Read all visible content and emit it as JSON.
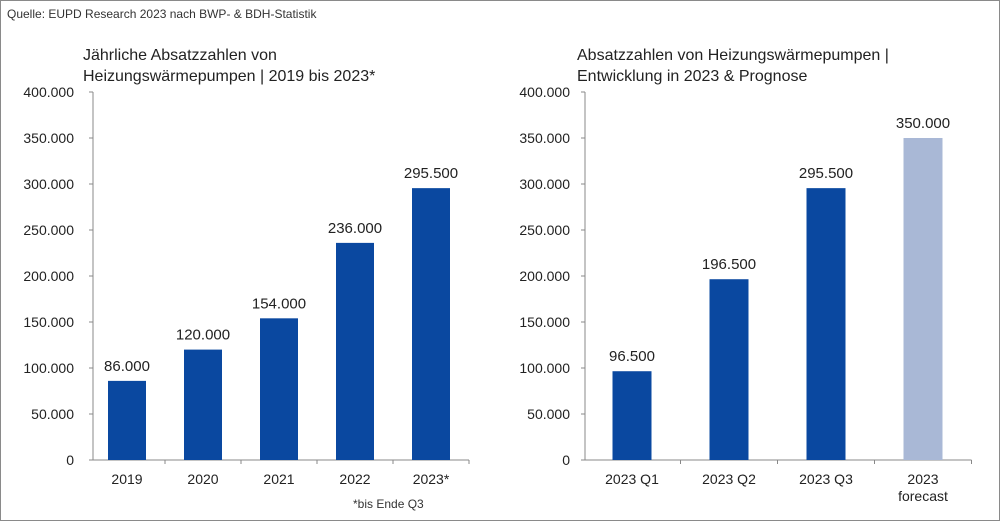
{
  "source": "Quelle: EUPD Research 2023 nach BWP- & BDH-Statistik",
  "footnote": "*bis Ende Q3",
  "chart_data": [
    {
      "type": "bar",
      "title": "Jährliche Absatzzahlen von\nHeizungswärmepumpen | 2019 bis 2023*",
      "categories": [
        "2019",
        "2020",
        "2021",
        "2022",
        "2023*"
      ],
      "values": [
        86000,
        120000,
        154000,
        236000,
        295500
      ],
      "data_labels": [
        "86.000",
        "120.000",
        "154.000",
        "236.000",
        "295.500"
      ],
      "yticks": [
        "0",
        "50.000",
        "100.000",
        "150.000",
        "200.000",
        "250.000",
        "300.000",
        "350.000",
        "400.000"
      ],
      "ylim": [
        0,
        400000
      ],
      "colors": [
        "#0a48a0",
        "#0a48a0",
        "#0a48a0",
        "#0a48a0",
        "#0a48a0"
      ],
      "grid": false,
      "legend": "none"
    },
    {
      "type": "bar",
      "title": "Absatzzahlen von Heizungswärmepumpen |\nEntwicklung in 2023 & Prognose",
      "categories": [
        "2023 Q1",
        "2023 Q2",
        "2023 Q3",
        "2023\nforecast"
      ],
      "values": [
        96500,
        196500,
        295500,
        350000
      ],
      "data_labels": [
        "96.500",
        "196.500",
        "295.500",
        "350.000"
      ],
      "yticks": [
        "0",
        "50.000",
        "100.000",
        "150.000",
        "200.000",
        "250.000",
        "300.000",
        "350.000",
        "400.000"
      ],
      "ylim": [
        0,
        400000
      ],
      "colors": [
        "#0a48a0",
        "#0a48a0",
        "#0a48a0",
        "#a9b8d6"
      ],
      "grid": false,
      "legend": "none"
    }
  ]
}
